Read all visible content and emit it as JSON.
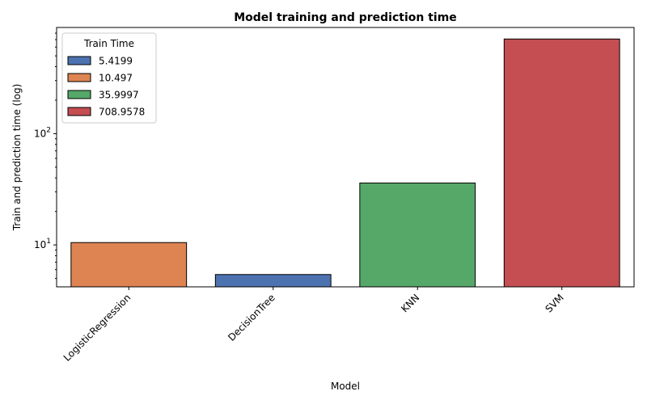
{
  "chart_data": {
    "type": "bar",
    "title": "Model training and prediction time",
    "xlabel": "Model",
    "ylabel": "Train and prediction time (log)",
    "yscale": "log",
    "ylim": [
      4.2,
      900
    ],
    "y_ticks": [
      {
        "value": 10,
        "base": "10",
        "exp": "1"
      },
      {
        "value": 100,
        "base": "10",
        "exp": "2"
      }
    ],
    "categories": [
      "LogisticRegression",
      "DecisionTree",
      "KNN",
      "SVM"
    ],
    "values": [
      10.497,
      5.4199,
      35.9997,
      708.9578
    ],
    "bar_colors": [
      "#dd8452",
      "#4c72b0",
      "#55a868",
      "#c44e52"
    ],
    "legend": {
      "title": "Train Time",
      "position": "top-left",
      "entries": [
        {
          "label": "5.4199",
          "color": "#4c72b0"
        },
        {
          "label": "10.497",
          "color": "#dd8452"
        },
        {
          "label": "35.9997",
          "color": "#55a868"
        },
        {
          "label": "708.9578",
          "color": "#c44e52"
        }
      ]
    }
  }
}
